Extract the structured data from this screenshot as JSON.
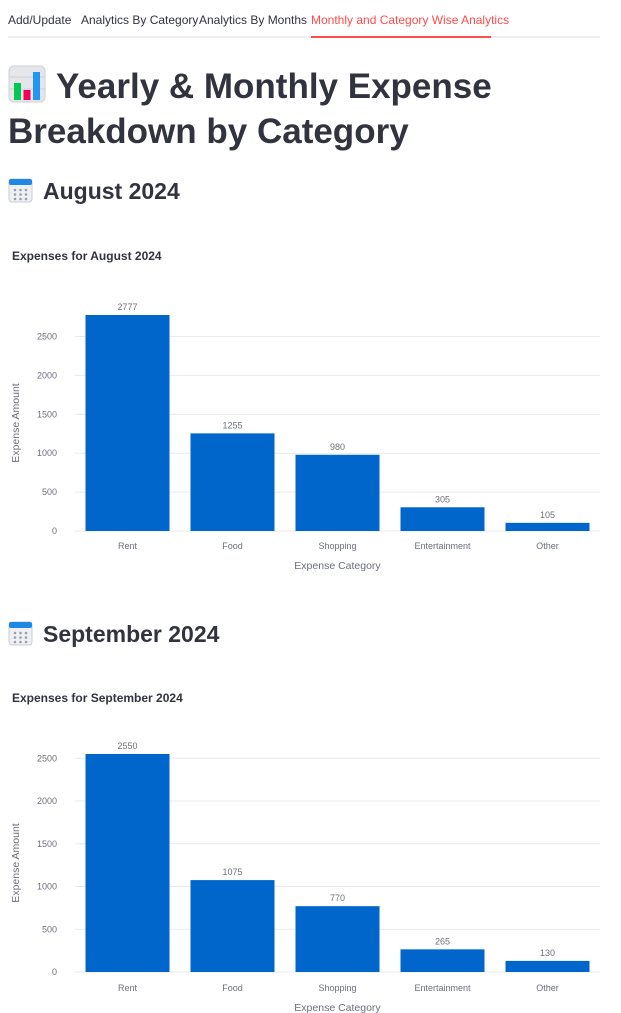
{
  "tabs": [
    {
      "label": "Add/Update",
      "active": false
    },
    {
      "label": "Analytics By Category",
      "active": false
    },
    {
      "label": "Analytics By Months",
      "active": false
    },
    {
      "label": "Monthly and Category Wise Analytics",
      "active": true
    }
  ],
  "page": {
    "title": "Yearly & Monthly Expense Breakdown by Category",
    "title_icon": "bar-chart-icon"
  },
  "colors": {
    "bar": "#0066cc",
    "active_tab": "#ff4b4b",
    "text": "#31333f",
    "grid": "#e9eaee"
  },
  "months": [
    {
      "heading": "August 2024",
      "icon": "calendar-icon"
    },
    {
      "heading": "September 2024",
      "icon": "calendar-icon"
    }
  ],
  "chart_data": [
    {
      "type": "bar",
      "title": "Expenses for August 2024",
      "categories": [
        "Rent",
        "Food",
        "Shopping",
        "Entertainment",
        "Other"
      ],
      "values": [
        2777,
        1255,
        980,
        305,
        105
      ],
      "xlabel": "Expense Category",
      "ylabel": "Expense Amount",
      "yticks": [
        0,
        500,
        1000,
        1500,
        2000,
        2500
      ],
      "ylim": [
        0,
        2777
      ],
      "grid": true,
      "data_labels": true
    },
    {
      "type": "bar",
      "title": "Expenses for September 2024",
      "categories": [
        "Rent",
        "Food",
        "Shopping",
        "Entertainment",
        "Other"
      ],
      "values": [
        2550,
        1075,
        770,
        265,
        130
      ],
      "xlabel": "Expense Category",
      "ylabel": "Expense Amount",
      "yticks": [
        0,
        500,
        1000,
        1500,
        2000,
        2500
      ],
      "ylim": [
        0,
        2550
      ],
      "grid": true,
      "data_labels": true
    }
  ]
}
